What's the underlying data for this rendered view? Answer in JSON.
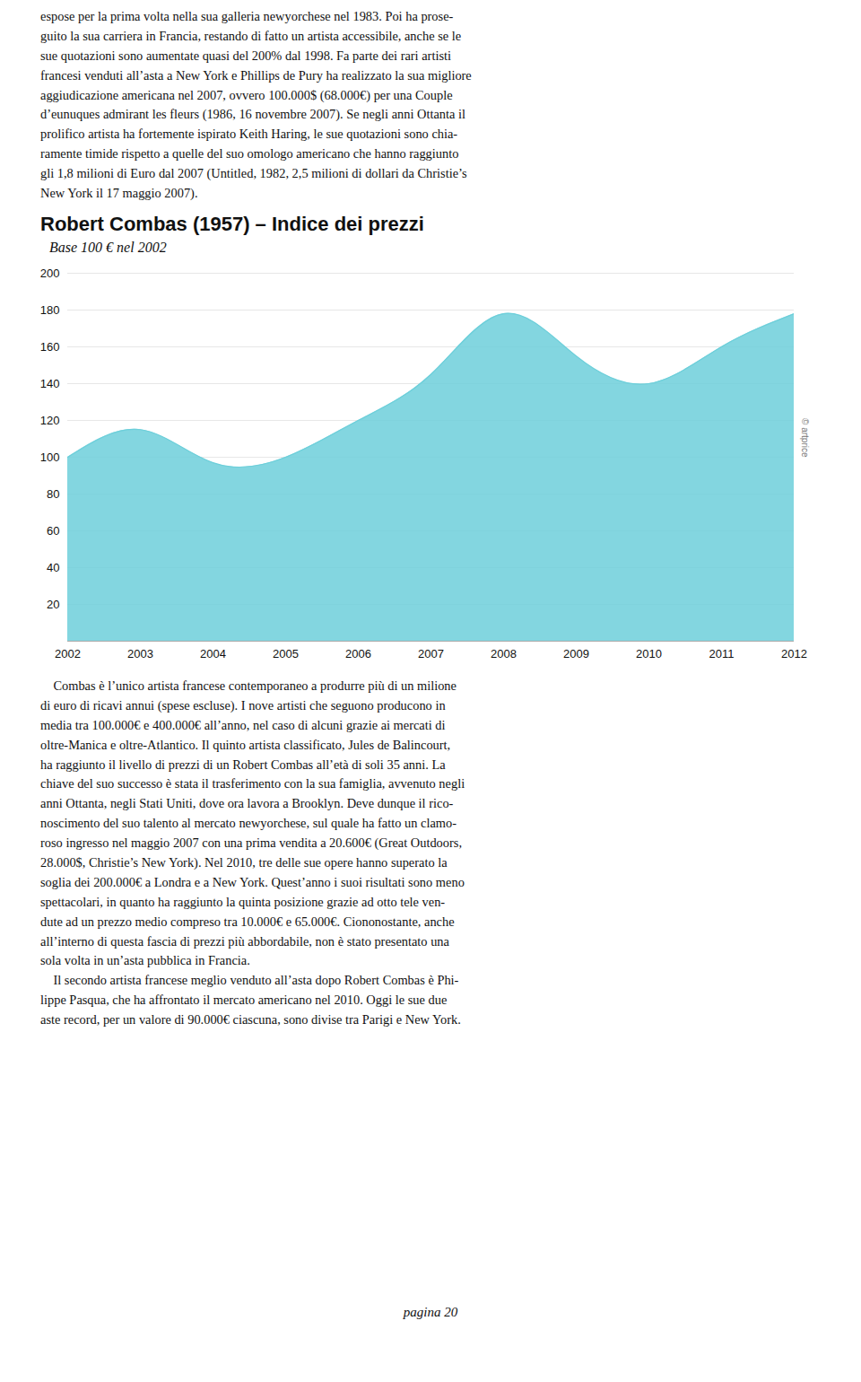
{
  "paragraph_top": "espose per la prima volta nella sua galleria newyorchese nel 1983. Poi ha prose-\nguito la sua carriera in Francia, restando di fatto un artista accessibile, anche se le\nsue quotazioni sono aumentate quasi del 200% dal 1998. Fa parte dei rari artisti\nfrancesi venduti all’asta a New York e Phillips de Pury ha realizzato la sua migliore\naggiudicazione americana nel 2007, ovvero 100.000$ (68.000€) per una Couple\nd’eunuques admirant les fleurs (1986, 16 novembre 2007). Se negli anni Ottanta il\nprolifico artista ha fortemente ispirato Keith Haring, le sue quotazioni sono chia-\nramente timide rispetto a quelle del suo omologo americano che hanno raggiunto\ngli 1,8 milioni di Euro dal 2007 (Untitled, 1982, 2,5 milioni di dollari da Christie’s\nNew York il 17 maggio 2007).",
  "chart_data": {
    "type": "area",
    "title": "Robert Combas (1957) – Indice dei prezzi",
    "subtitle": "Base 100 € nel 2002",
    "x": [
      2002,
      2003,
      2004,
      2005,
      2006,
      2007,
      2008,
      2009,
      2010,
      2011,
      2012
    ],
    "values": [
      100,
      115,
      97,
      100,
      120,
      145,
      178,
      155,
      140,
      160,
      178
    ],
    "color": "#6DCFDA",
    "xlim": [
      2002,
      2012
    ],
    "xticks": [
      2002,
      2003,
      2004,
      2005,
      2006,
      2007,
      2008,
      2009,
      2010,
      2011,
      2012
    ],
    "ylim": [
      0,
      200
    ],
    "yticks": [
      20,
      40,
      60,
      80,
      100,
      120,
      140,
      160,
      180,
      200
    ],
    "grid": true,
    "annotations": [
      "© artprice"
    ]
  },
  "paragraph_bottom": "    Combas è l’unico artista francese contemporaneo a produrre più di un milione\ndi euro di ricavi annui (spese escluse). I nove artisti che seguono producono in\nmedia tra 100.000€ e 400.000€ all’anno, nel caso di alcuni grazie ai mercati di\noltre-Manica e oltre-Atlantico. Il quinto artista classificato, Jules de Balincourt,\nha raggiunto il livello di prezzi di un Robert Combas all’età di soli 35 anni. La\nchiave del suo successo è stata il trasferimento con la sua famiglia, avvenuto negli\nanni Ottanta, negli Stati Uniti, dove ora lavora a Brooklyn. Deve dunque il rico-\nnoscimento del suo talento al mercato newyorchese, sul quale ha fatto un clamo-\nroso ingresso nel maggio 2007 con una prima vendita a 20.600€ (Great Outdoors,\n28.000$, Christie’s New York). Nel 2010, tre delle sue opere hanno superato la\nsoglia dei 200.000€ a Londra e a New York. Quest’anno i suoi risultati sono meno\nspettacolari, in quanto ha raggiunto la quinta posizione grazie ad otto tele ven-\ndute ad un prezzo medio compreso tra 10.000€ e 65.000€. Ciononostante, anche\nall’interno di questa fascia di prezzi più abbordabile, non è stato presentato una\nsola volta in un’asta pubblica in Francia.\n    Il secondo artista francese meglio venduto all’asta dopo Robert Combas è Phi-\nlippe Pasqua, che ha affrontato il mercato americano nel 2010. Oggi le sue due\naste record, per un valore di 90.000€ ciascuna, sono divise tra Parigi e New York.",
  "page_number": "pagina 20"
}
